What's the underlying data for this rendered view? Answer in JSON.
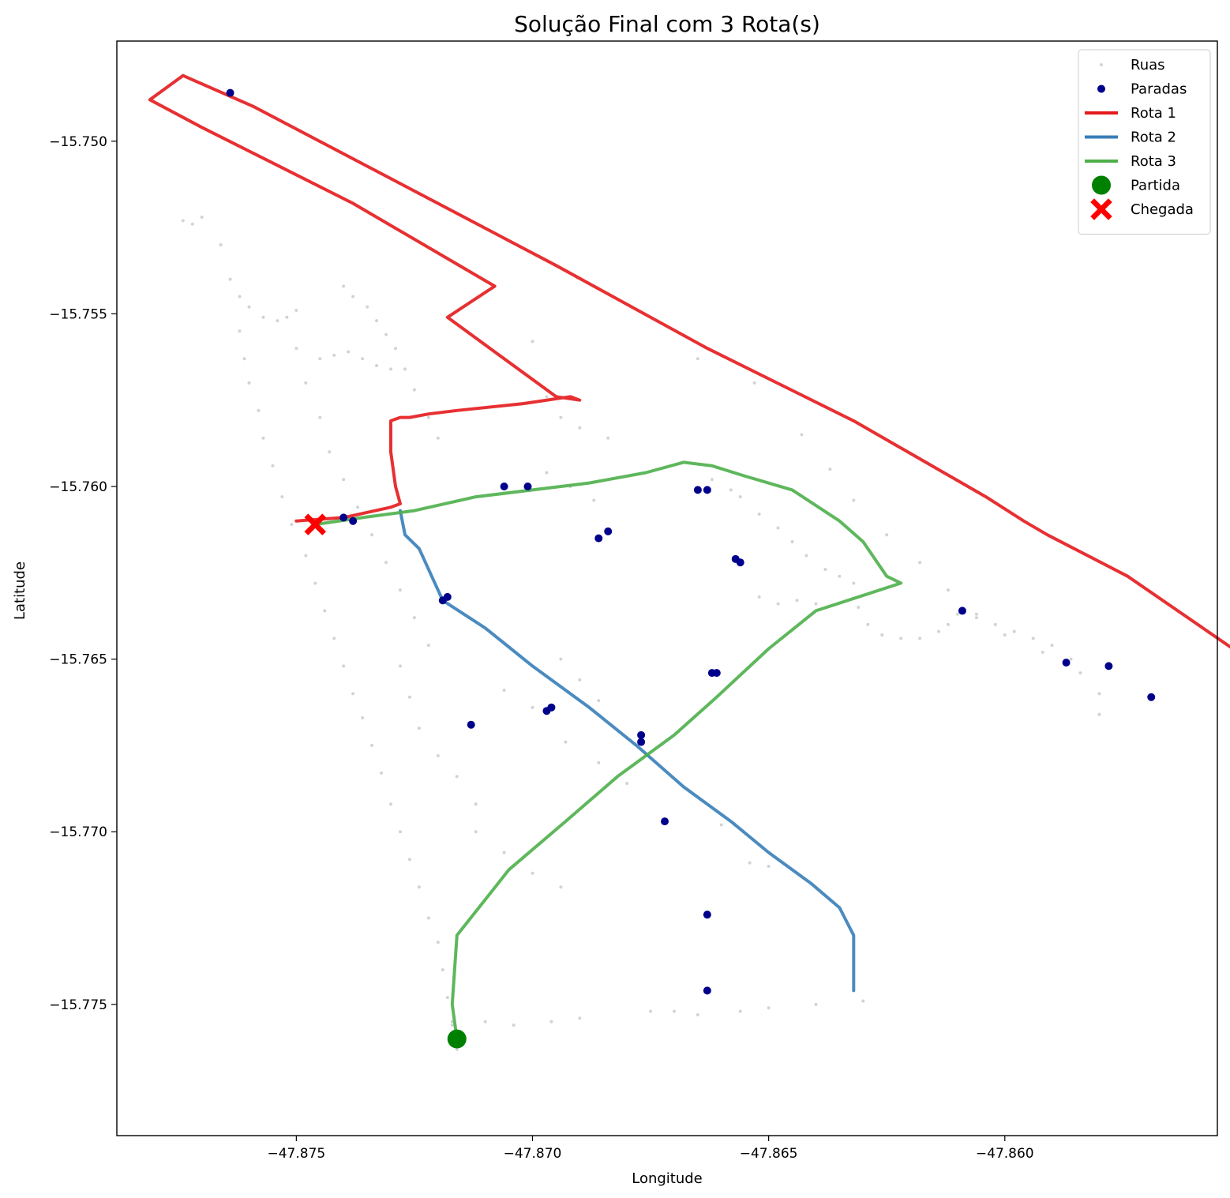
{
  "chart_data": {
    "type": "scatter",
    "title": "Solução Final com 3 Rota(s)",
    "xlabel": "Longitude",
    "ylabel": "Latitude",
    "xlim": [
      -47.8788,
      -47.8555
    ],
    "ylim": [
      -15.7788,
      -15.7471
    ],
    "xticks": [
      -47.875,
      -47.87,
      -47.865,
      -47.86
    ],
    "xtick_labels": [
      "−47.875",
      "−47.870",
      "−47.865",
      "−47.860"
    ],
    "yticks": [
      -15.75,
      -15.755,
      -15.76,
      -15.765,
      -15.77,
      -15.775
    ],
    "ytick_labels": [
      "−15.750",
      "−15.755",
      "−15.760",
      "−15.765",
      "−15.770",
      "−15.775"
    ],
    "grid": false,
    "legend_position": "top-right",
    "legend": [
      {
        "label": "Ruas",
        "kind": "dot",
        "color": "#d3d3d3"
      },
      {
        "label": "Paradas",
        "kind": "marker",
        "color": "#00008b"
      },
      {
        "label": "Rota 1",
        "kind": "line",
        "color": "#e41a1c"
      },
      {
        "label": "Rota 2",
        "kind": "line",
        "color": "#377eb8"
      },
      {
        "label": "Rota 3",
        "kind": "line",
        "color": "#4daf4a"
      },
      {
        "label": "Partida",
        "kind": "circle",
        "color": "#008000"
      },
      {
        "label": "Chegada",
        "kind": "x",
        "color": "#ff0000"
      }
    ],
    "ruas": [
      [
        -47.8774,
        -15.7523
      ],
      [
        -47.8772,
        -15.7524
      ],
      [
        -47.877,
        -15.7522
      ],
      [
        -47.8766,
        -15.753
      ],
      [
        -47.8764,
        -15.754
      ],
      [
        -47.8762,
        -15.7545
      ],
      [
        -47.876,
        -15.7548
      ],
      [
        -47.8757,
        -15.7551
      ],
      [
        -47.8754,
        -15.7552
      ],
      [
        -47.8752,
        -15.7551
      ],
      [
        -47.875,
        -15.7549
      ],
      [
        -47.8762,
        -15.7555
      ],
      [
        -47.8761,
        -15.7563
      ],
      [
        -47.876,
        -15.757
      ],
      [
        -47.8758,
        -15.7578
      ],
      [
        -47.8757,
        -15.7586
      ],
      [
        -47.8755,
        -15.7594
      ],
      [
        -47.8753,
        -15.7603
      ],
      [
        -47.8751,
        -15.7611
      ],
      [
        -47.8748,
        -15.762
      ],
      [
        -47.8746,
        -15.7628
      ],
      [
        -47.8744,
        -15.7636
      ],
      [
        -47.8742,
        -15.7644
      ],
      [
        -47.874,
        -15.7652
      ],
      [
        -47.8738,
        -15.766
      ],
      [
        -47.8736,
        -15.7667
      ],
      [
        -47.8734,
        -15.7675
      ],
      [
        -47.8732,
        -15.7683
      ],
      [
        -47.873,
        -15.7692
      ],
      [
        -47.8728,
        -15.77
      ],
      [
        -47.8726,
        -15.7708
      ],
      [
        -47.8724,
        -15.7716
      ],
      [
        -47.8722,
        -15.7725
      ],
      [
        -47.872,
        -15.7732
      ],
      [
        -47.8719,
        -15.774
      ],
      [
        -47.8718,
        -15.7748
      ],
      [
        -47.8717,
        -15.7756
      ],
      [
        -47.8716,
        -15.7763
      ],
      [
        -47.875,
        -15.756
      ],
      [
        -47.8748,
        -15.757
      ],
      [
        -47.8745,
        -15.758
      ],
      [
        -47.8743,
        -15.759
      ],
      [
        -47.874,
        -15.7598
      ],
      [
        -47.8737,
        -15.7606
      ],
      [
        -47.8734,
        -15.7614
      ],
      [
        -47.8731,
        -15.7622
      ],
      [
        -47.8728,
        -15.763
      ],
      [
        -47.8725,
        -15.7638
      ],
      [
        -47.8722,
        -15.7646
      ],
      [
        -47.8728,
        -15.7652
      ],
      [
        -47.8726,
        -15.7661
      ],
      [
        -47.8724,
        -15.767
      ],
      [
        -47.872,
        -15.7678
      ],
      [
        -47.8716,
        -15.7684
      ],
      [
        -47.8712,
        -15.7692
      ],
      [
        -47.874,
        -15.7542
      ],
      [
        -47.8738,
        -15.7545
      ],
      [
        -47.8735,
        -15.7548
      ],
      [
        -47.8733,
        -15.7552
      ],
      [
        -47.8731,
        -15.7556
      ],
      [
        -47.8729,
        -15.756
      ],
      [
        -47.8727,
        -15.7566
      ],
      [
        -47.8725,
        -15.7572
      ],
      [
        -47.8722,
        -15.758
      ],
      [
        -47.872,
        -15.7586
      ],
      [
        -47.8745,
        -15.7563
      ],
      [
        -47.8742,
        -15.7562
      ],
      [
        -47.8739,
        -15.7561
      ],
      [
        -47.8736,
        -15.7563
      ],
      [
        -47.8733,
        -15.7565
      ],
      [
        -47.873,
        -15.7566
      ],
      [
        -47.8708,
        -15.7542
      ],
      [
        -47.87,
        -15.7558
      ],
      [
        -47.8697,
        -15.7574
      ],
      [
        -47.8694,
        -15.758
      ],
      [
        -47.869,
        -15.7583
      ],
      [
        -47.8684,
        -15.7586
      ],
      [
        -47.8697,
        -15.7596
      ],
      [
        -47.8692,
        -15.76
      ],
      [
        -47.8687,
        -15.7604
      ],
      [
        -47.8665,
        -15.7563
      ],
      [
        -47.8653,
        -15.757
      ],
      [
        -47.8643,
        -15.7585
      ],
      [
        -47.8637,
        -15.7595
      ],
      [
        -47.8632,
        -15.7604
      ],
      [
        -47.8625,
        -15.7614
      ],
      [
        -47.8618,
        -15.7622
      ],
      [
        -47.8612,
        -15.763
      ],
      [
        -47.8606,
        -15.7637
      ],
      [
        -47.86,
        -15.7643
      ],
      [
        -47.8592,
        -15.7648
      ],
      [
        -47.8584,
        -15.7654
      ],
      [
        -47.858,
        -15.766
      ],
      [
        -47.858,
        -15.7666
      ],
      [
        -47.8662,
        -15.7598
      ],
      [
        -47.8658,
        -15.7601
      ],
      [
        -47.8656,
        -15.7603
      ],
      [
        -47.8652,
        -15.7608
      ],
      [
        -47.8648,
        -15.7612
      ],
      [
        -47.8645,
        -15.7616
      ],
      [
        -47.8642,
        -15.762
      ],
      [
        -47.8638,
        -15.7624
      ],
      [
        -47.8635,
        -15.7626
      ],
      [
        -47.8632,
        -15.7628
      ],
      [
        -47.8631,
        -15.7635
      ],
      [
        -47.8629,
        -15.764
      ],
      [
        -47.8626,
        -15.7643
      ],
      [
        -47.8622,
        -15.7644
      ],
      [
        -47.8618,
        -15.7644
      ],
      [
        -47.8614,
        -15.7642
      ],
      [
        -47.8612,
        -15.764
      ],
      [
        -47.861,
        -15.7637
      ],
      [
        -47.8606,
        -15.7638
      ],
      [
        -47.8602,
        -15.764
      ],
      [
        -47.8598,
        -15.7642
      ],
      [
        -47.8594,
        -15.7644
      ],
      [
        -47.859,
        -15.7646
      ],
      [
        -47.8586,
        -15.765
      ],
      [
        -47.8652,
        -15.7632
      ],
      [
        -47.8648,
        -15.7634
      ],
      [
        -47.8644,
        -15.7633
      ],
      [
        -47.864,
        -15.7634
      ],
      [
        -47.8694,
        -15.765
      ],
      [
        -47.869,
        -15.7656
      ],
      [
        -47.8686,
        -15.7662
      ],
      [
        -47.8706,
        -15.7659
      ],
      [
        -47.87,
        -15.7664
      ],
      [
        -47.8693,
        -15.7674
      ],
      [
        -47.8686,
        -15.768
      ],
      [
        -47.868,
        -15.7686
      ],
      [
        -47.8712,
        -15.77
      ],
      [
        -47.8706,
        -15.7706
      ],
      [
        -47.87,
        -15.7712
      ],
      [
        -47.8694,
        -15.7716
      ],
      [
        -47.866,
        -15.7698
      ],
      [
        -47.8654,
        -15.7709
      ],
      [
        -47.865,
        -15.771
      ],
      [
        -47.8717,
        -15.7755
      ],
      [
        -47.871,
        -15.7755
      ],
      [
        -47.8704,
        -15.7756
      ],
      [
        -47.8696,
        -15.7755
      ],
      [
        -47.869,
        -15.7754
      ],
      [
        -47.8675,
        -15.7752
      ],
      [
        -47.867,
        -15.7752
      ],
      [
        -47.8665,
        -15.7753
      ],
      [
        -47.8656,
        -15.7752
      ],
      [
        -47.865,
        -15.7751
      ],
      [
        -47.864,
        -15.775
      ],
      [
        -47.863,
        -15.7749
      ]
    ],
    "paradas": [
      [
        -47.8764,
        -15.7486
      ],
      [
        -47.874,
        -15.7609
      ],
      [
        -47.8738,
        -15.761
      ],
      [
        -47.8706,
        -15.76
      ],
      [
        -47.8701,
        -15.76
      ],
      [
        -47.8719,
        -15.7633
      ],
      [
        -47.8718,
        -15.7632
      ],
      [
        -47.8686,
        -15.7615
      ],
      [
        -47.8684,
        -15.7613
      ],
      [
        -47.8697,
        -15.7665
      ],
      [
        -47.8696,
        -15.7664
      ],
      [
        -47.8713,
        -15.7669
      ],
      [
        -47.8665,
        -15.7601
      ],
      [
        -47.8663,
        -15.7601
      ],
      [
        -47.8657,
        -15.7621
      ],
      [
        -47.8656,
        -15.7622
      ],
      [
        -47.8677,
        -15.7672
      ],
      [
        -47.8677,
        -15.7674
      ],
      [
        -47.8662,
        -15.7654
      ],
      [
        -47.8661,
        -15.7654
      ],
      [
        -47.8672,
        -15.7697
      ],
      [
        -47.8663,
        -15.7724
      ],
      [
        -47.8663,
        -15.7746
      ],
      [
        -47.8609,
        -15.7636
      ],
      [
        -47.8587,
        -15.7651
      ],
      [
        -47.8578,
        -15.7652
      ],
      [
        -47.8569,
        -15.7661
      ]
    ],
    "routes": [
      {
        "name": "Rota 1",
        "color": "#e41a1c",
        "path": [
          [
            -47.875,
            -15.761
          ],
          [
            -47.874,
            -15.7609
          ],
          [
            -47.873,
            -15.7606
          ],
          [
            -47.8728,
            -15.7605
          ],
          [
            -47.8729,
            -15.76
          ],
          [
            -47.873,
            -15.759
          ],
          [
            -47.873,
            -15.7581
          ],
          [
            -47.8728,
            -15.758
          ],
          [
            -47.8726,
            -15.758
          ],
          [
            -47.8722,
            -15.7579
          ],
          [
            -47.8716,
            -15.7578
          ],
          [
            -47.8702,
            -15.7576
          ],
          [
            -47.8692,
            -15.7574
          ],
          [
            -47.869,
            -15.7575
          ],
          [
            -47.8695,
            -15.7574
          ],
          [
            -47.8718,
            -15.7551
          ],
          [
            -47.8708,
            -15.7542
          ],
          [
            -47.8738,
            -15.7518
          ],
          [
            -47.877,
            -15.7496
          ],
          [
            -47.8781,
            -15.7488
          ],
          [
            -47.8774,
            -15.7481
          ],
          [
            -47.8759,
            -15.749
          ],
          [
            -47.8727,
            -15.7513
          ],
          [
            -47.8695,
            -15.7536
          ],
          [
            -47.8663,
            -15.756
          ],
          [
            -47.8632,
            -15.7581
          ],
          [
            -47.8604,
            -15.7603
          ],
          [
            -47.8596,
            -15.761
          ],
          [
            -47.8591,
            -15.7614
          ],
          [
            -47.8574,
            -15.7626
          ],
          [
            -47.854,
            -15.7658
          ],
          [
            -47.853,
            -15.7663
          ],
          [
            -47.8515,
            -15.7658
          ]
        ]
      },
      {
        "name": "Rota 2",
        "color": "#377eb8",
        "path": [
          [
            -47.8728,
            -15.7607
          ],
          [
            -47.8727,
            -15.7614
          ],
          [
            -47.8724,
            -15.7618
          ],
          [
            -47.8719,
            -15.7633
          ],
          [
            -47.871,
            -15.7641
          ],
          [
            -47.87,
            -15.7652
          ],
          [
            -47.8688,
            -15.7664
          ],
          [
            -47.8678,
            -15.7675
          ],
          [
            -47.8668,
            -15.7687
          ],
          [
            -47.8658,
            -15.7697
          ],
          [
            -47.865,
            -15.7706
          ],
          [
            -47.8641,
            -15.7715
          ],
          [
            -47.8635,
            -15.7722
          ],
          [
            -47.8632,
            -15.773
          ],
          [
            -47.8632,
            -15.7746
          ]
        ]
      },
      {
        "name": "Rota 3",
        "color": "#4daf4a",
        "path": [
          [
            -47.8746,
            -15.7611
          ],
          [
            -47.8736,
            -15.7609
          ],
          [
            -47.8725,
            -15.7607
          ],
          [
            -47.8712,
            -15.7603
          ],
          [
            -47.87,
            -15.7601
          ],
          [
            -47.8688,
            -15.7599
          ],
          [
            -47.8676,
            -15.7596
          ],
          [
            -47.8668,
            -15.7593
          ],
          [
            -47.8662,
            -15.7594
          ],
          [
            -47.8655,
            -15.7597
          ],
          [
            -47.8645,
            -15.7601
          ],
          [
            -47.8635,
            -15.761
          ],
          [
            -47.863,
            -15.7616
          ],
          [
            -47.8625,
            -15.7626
          ],
          [
            -47.8622,
            -15.7628
          ],
          [
            -47.864,
            -15.7636
          ],
          [
            -47.865,
            -15.7647
          ],
          [
            -47.8661,
            -15.7661
          ],
          [
            -47.867,
            -15.7672
          ],
          [
            -47.8682,
            -15.7684
          ],
          [
            -47.8693,
            -15.7697
          ],
          [
            -47.8705,
            -15.7711
          ],
          [
            -47.8716,
            -15.773
          ],
          [
            -47.8717,
            -15.775
          ],
          [
            -47.8716,
            -15.776
          ]
        ]
      }
    ],
    "partida": [
      -47.8716,
      -15.776
    ],
    "chegada": [
      -47.8746,
      -15.7611
    ]
  }
}
